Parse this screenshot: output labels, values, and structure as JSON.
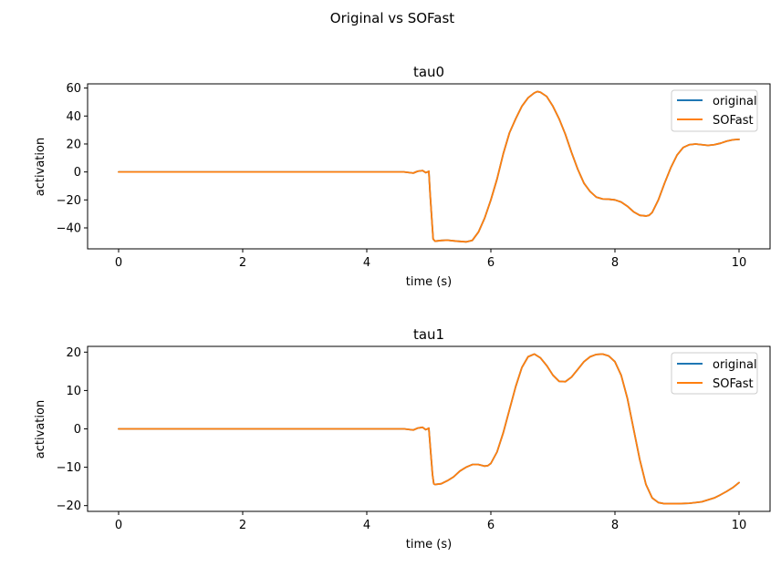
{
  "figure_title": "Original vs SOFast",
  "colors": {
    "original": "#1f77b4",
    "sofast": "#ff7f0e"
  },
  "chart_data": [
    {
      "type": "line",
      "title": "tau0",
      "xlabel": "time (s)",
      "ylabel": "activation",
      "xlim": [
        -0.5,
        10.5
      ],
      "ylim": [
        -55,
        63
      ],
      "xticks": [
        0,
        2,
        4,
        6,
        8,
        10
      ],
      "yticks": [
        -40,
        -20,
        0,
        20,
        40,
        60
      ],
      "legend": "top-right",
      "series": [
        {
          "name": "original",
          "x": [
            0,
            1,
            2,
            3,
            4,
            4.6,
            4.75,
            4.82,
            4.9,
            4.95,
            4.98,
            5.0,
            5.02,
            5.05,
            5.07,
            5.1,
            5.2,
            5.3,
            5.45,
            5.6,
            5.7,
            5.8,
            5.9,
            6.0,
            6.1,
            6.2,
            6.3,
            6.4,
            6.5,
            6.6,
            6.7,
            6.75,
            6.8,
            6.9,
            7.0,
            7.1,
            7.2,
            7.3,
            7.4,
            7.5,
            7.6,
            7.7,
            7.8,
            7.9,
            8.0,
            8.1,
            8.2,
            8.3,
            8.4,
            8.5,
            8.55,
            8.6,
            8.7,
            8.8,
            8.9,
            9.0,
            9.1,
            9.2,
            9.3,
            9.4,
            9.5,
            9.6,
            9.7,
            9.8,
            9.9,
            10.0
          ],
          "y": [
            0,
            0,
            0,
            0,
            0,
            0,
            -0.8,
            0.5,
            1.0,
            -0.5,
            0,
            0.5,
            -15,
            -35,
            -48,
            -49.5,
            -49,
            -48.8,
            -49.5,
            -50,
            -49,
            -43,
            -33,
            -20,
            -5,
            13,
            28,
            38,
            47,
            53,
            56.5,
            57.5,
            57,
            54,
            47,
            38,
            27,
            14,
            2,
            -8,
            -14,
            -18,
            -19.3,
            -19.5,
            -20,
            -21.5,
            -24.5,
            -28.5,
            -31,
            -31.5,
            -31,
            -29,
            -20,
            -8,
            3,
            12,
            17.5,
            19.5,
            20,
            19.5,
            19,
            19.5,
            20.5,
            22,
            23,
            23.3
          ]
        },
        {
          "name": "SOFast",
          "x": [
            0,
            1,
            2,
            3,
            4,
            4.6,
            4.75,
            4.82,
            4.9,
            4.95,
            4.98,
            5.0,
            5.02,
            5.05,
            5.07,
            5.1,
            5.2,
            5.3,
            5.45,
            5.6,
            5.7,
            5.8,
            5.9,
            6.0,
            6.1,
            6.2,
            6.3,
            6.4,
            6.5,
            6.6,
            6.7,
            6.75,
            6.8,
            6.9,
            7.0,
            7.1,
            7.2,
            7.3,
            7.4,
            7.5,
            7.6,
            7.7,
            7.8,
            7.9,
            8.0,
            8.1,
            8.2,
            8.3,
            8.4,
            8.5,
            8.55,
            8.6,
            8.7,
            8.8,
            8.9,
            9.0,
            9.1,
            9.2,
            9.3,
            9.4,
            9.5,
            9.6,
            9.7,
            9.8,
            9.9,
            10.0
          ],
          "y": [
            0,
            0,
            0,
            0,
            0,
            0,
            -0.8,
            0.5,
            1.0,
            -0.5,
            0,
            0.5,
            -15,
            -35,
            -48,
            -49.5,
            -49,
            -48.8,
            -49.5,
            -50,
            -49,
            -43,
            -33,
            -20,
            -5,
            13,
            28,
            38,
            47,
            53,
            56.5,
            57.5,
            57,
            54,
            47,
            38,
            27,
            14,
            2,
            -8,
            -14,
            -18,
            -19.3,
            -19.5,
            -20,
            -21.5,
            -24.5,
            -28.5,
            -31,
            -31.5,
            -31,
            -29,
            -20,
            -8,
            3,
            12,
            17.5,
            19.5,
            20,
            19.5,
            19,
            19.5,
            20.5,
            22,
            23,
            23.3
          ]
        }
      ]
    },
    {
      "type": "line",
      "title": "tau1",
      "xlabel": "time (s)",
      "ylabel": "activation",
      "xlim": [
        -0.5,
        10.5
      ],
      "ylim": [
        -21.5,
        21.5
      ],
      "xticks": [
        0,
        2,
        4,
        6,
        8,
        10
      ],
      "yticks": [
        -20,
        -10,
        0,
        10,
        20
      ],
      "legend": "top-right",
      "series": [
        {
          "name": "original",
          "x": [
            0,
            1,
            2,
            3,
            4,
            4.6,
            4.75,
            4.82,
            4.9,
            4.95,
            4.98,
            5.0,
            5.03,
            5.06,
            5.08,
            5.1,
            5.2,
            5.3,
            5.4,
            5.5,
            5.6,
            5.7,
            5.8,
            5.9,
            5.95,
            6.0,
            6.1,
            6.2,
            6.3,
            6.4,
            6.5,
            6.6,
            6.7,
            6.8,
            6.9,
            7.0,
            7.1,
            7.2,
            7.3,
            7.4,
            7.5,
            7.6,
            7.7,
            7.8,
            7.9,
            8.0,
            8.1,
            8.2,
            8.3,
            8.4,
            8.5,
            8.6,
            8.7,
            8.8,
            8.9,
            9.0,
            9.2,
            9.4,
            9.6,
            9.7,
            9.8,
            9.9,
            10.0
          ],
          "y": [
            0,
            0,
            0,
            0,
            0,
            0,
            -0.3,
            0.2,
            0.4,
            -0.2,
            0,
            0.2,
            -6,
            -12,
            -14.3,
            -14.5,
            -14.3,
            -13.5,
            -12.5,
            -11,
            -10,
            -9.3,
            -9.3,
            -9.7,
            -9.6,
            -9,
            -6,
            -1,
            5,
            11,
            16,
            18.8,
            19.5,
            18.5,
            16.5,
            14,
            12.4,
            12.3,
            13.5,
            15.5,
            17.5,
            18.8,
            19.4,
            19.5,
            19,
            17.5,
            14,
            8,
            0,
            -8,
            -14.5,
            -18,
            -19.2,
            -19.5,
            -19.5,
            -19.5,
            -19.4,
            -19.0,
            -18.0,
            -17.2,
            -16.3,
            -15.3,
            -14
          ]
        },
        {
          "name": "SOFast",
          "x": [
            0,
            1,
            2,
            3,
            4,
            4.6,
            4.75,
            4.82,
            4.9,
            4.95,
            4.98,
            5.0,
            5.03,
            5.06,
            5.08,
            5.1,
            5.2,
            5.3,
            5.4,
            5.5,
            5.6,
            5.7,
            5.8,
            5.9,
            5.95,
            6.0,
            6.1,
            6.2,
            6.3,
            6.4,
            6.5,
            6.6,
            6.7,
            6.8,
            6.9,
            7.0,
            7.1,
            7.2,
            7.3,
            7.4,
            7.5,
            7.6,
            7.7,
            7.8,
            7.9,
            8.0,
            8.1,
            8.2,
            8.3,
            8.4,
            8.5,
            8.6,
            8.7,
            8.8,
            8.9,
            9.0,
            9.2,
            9.4,
            9.6,
            9.7,
            9.8,
            9.9,
            10.0
          ],
          "y": [
            0,
            0,
            0,
            0,
            0,
            0,
            -0.3,
            0.2,
            0.4,
            -0.2,
            0,
            0.2,
            -6,
            -12,
            -14.3,
            -14.5,
            -14.3,
            -13.5,
            -12.5,
            -11,
            -10,
            -9.3,
            -9.3,
            -9.7,
            -9.6,
            -9,
            -6,
            -1,
            5,
            11,
            16,
            18.8,
            19.5,
            18.5,
            16.5,
            14,
            12.4,
            12.3,
            13.5,
            15.5,
            17.5,
            18.8,
            19.4,
            19.5,
            19,
            17.5,
            14,
            8,
            0,
            -8,
            -14.5,
            -18,
            -19.2,
            -19.5,
            -19.5,
            -19.5,
            -19.4,
            -19.0,
            -18.0,
            -17.2,
            -16.3,
            -15.3,
            -14
          ]
        }
      ]
    }
  ]
}
